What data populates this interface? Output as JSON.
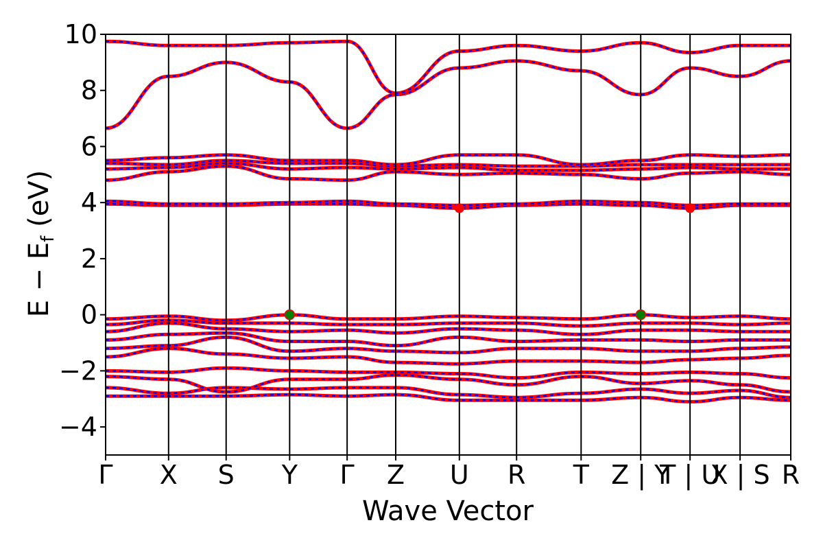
{
  "chart_data": {
    "type": "line",
    "xlabel": "Wave Vector",
    "ylabel": "E − E_f (eV)",
    "ylabel_parts": {
      "main": "E − E",
      "sub": "f",
      "unit": " (eV)"
    },
    "ylim": [
      -5,
      10
    ],
    "yticks": [
      -4,
      -2,
      0,
      2,
      4,
      6,
      8,
      10
    ],
    "ytick_labels": [
      "−4",
      "−2",
      "0",
      "2",
      "4",
      "6",
      "8",
      "10"
    ],
    "kpath_labels": [
      "Γ",
      "X",
      "S",
      "Y",
      "Γ",
      "Z",
      "U",
      "R",
      "T",
      "Z | Y",
      "T | U",
      "X | S",
      "R"
    ],
    "kpath_positions": [
      0,
      0.919,
      1.759,
      2.686,
      3.525,
      4.234,
      5.163,
      5.998,
      6.94,
      7.81,
      8.53,
      9.26,
      10.0
    ],
    "grid": false,
    "legend": "none",
    "colors": {
      "spin_up": "#ff0000",
      "spin_down": "#0000ff",
      "vbm": "#008000",
      "cbm": "#ff0000",
      "kline": "#000000"
    },
    "series": [
      {
        "color": "#ff0000",
        "points": [
          [
            0,
            -2.9
          ],
          [
            0.919,
            -2.9
          ],
          [
            1.759,
            -2.9
          ],
          [
            2.686,
            -2.85
          ],
          [
            3.525,
            -2.9
          ],
          [
            4.234,
            -2.85
          ],
          [
            5.163,
            -3.05
          ],
          [
            5.998,
            -3.05
          ],
          [
            6.94,
            -3.05
          ],
          [
            7.81,
            -2.95
          ],
          [
            8.53,
            -3.1
          ],
          [
            9.26,
            -2.95
          ],
          [
            10.0,
            -3.05
          ]
        ]
      },
      {
        "color": "#ff0000",
        "points": [
          [
            0,
            -2.6
          ],
          [
            0.919,
            -2.8
          ],
          [
            1.759,
            -2.6
          ],
          [
            2.686,
            -2.65
          ],
          [
            3.525,
            -2.6
          ],
          [
            4.234,
            -2.6
          ],
          [
            5.163,
            -2.85
          ],
          [
            5.998,
            -2.95
          ],
          [
            6.94,
            -2.8
          ],
          [
            7.81,
            -2.65
          ],
          [
            8.53,
            -2.8
          ],
          [
            9.26,
            -2.7
          ],
          [
            10.0,
            -2.95
          ]
        ]
      },
      {
        "color": "#ff0000",
        "points": [
          [
            0,
            -2.2
          ],
          [
            0.919,
            -2.3
          ],
          [
            1.759,
            -2.75
          ],
          [
            2.686,
            -2.3
          ],
          [
            3.525,
            -2.3
          ],
          [
            4.234,
            -2.15
          ],
          [
            5.163,
            -2.3
          ],
          [
            5.998,
            -2.5
          ],
          [
            6.94,
            -2.2
          ],
          [
            7.81,
            -2.45
          ],
          [
            8.53,
            -2.35
          ],
          [
            9.26,
            -2.5
          ],
          [
            10.0,
            -2.75
          ]
        ]
      },
      {
        "color": "#ff0000",
        "points": [
          [
            0,
            -2.0
          ],
          [
            0.919,
            -2.05
          ],
          [
            1.759,
            -1.9
          ],
          [
            2.686,
            -2.0
          ],
          [
            3.525,
            -2.05
          ],
          [
            4.234,
            -2.05
          ],
          [
            5.163,
            -2.1
          ],
          [
            5.998,
            -2.25
          ],
          [
            6.94,
            -2.05
          ],
          [
            7.81,
            -2.1
          ],
          [
            8.53,
            -2.05
          ],
          [
            9.26,
            -2.1
          ],
          [
            10.0,
            -2.25
          ]
        ]
      },
      {
        "color": "#ff0000",
        "points": [
          [
            0,
            -1.5
          ],
          [
            0.919,
            -1.2
          ],
          [
            1.759,
            -1.4
          ],
          [
            2.686,
            -1.55
          ],
          [
            3.525,
            -1.5
          ],
          [
            4.234,
            -1.7
          ],
          [
            5.163,
            -1.75
          ],
          [
            5.998,
            -1.65
          ],
          [
            6.94,
            -1.65
          ],
          [
            7.81,
            -1.7
          ],
          [
            8.53,
            -1.6
          ],
          [
            9.26,
            -1.55
          ],
          [
            10.0,
            -1.45
          ]
        ]
      },
      {
        "color": "#ff0000",
        "points": [
          [
            0,
            -1.2
          ],
          [
            0.919,
            -1.1
          ],
          [
            1.759,
            -0.8
          ],
          [
            2.686,
            -1.3
          ],
          [
            3.525,
            -1.2
          ],
          [
            4.234,
            -1.3
          ],
          [
            5.163,
            -1.35
          ],
          [
            5.998,
            -1.2
          ],
          [
            6.94,
            -1.2
          ],
          [
            7.81,
            -1.3
          ],
          [
            8.53,
            -1.3
          ],
          [
            9.26,
            -1.2
          ],
          [
            10.0,
            -1.15
          ]
        ]
      },
      {
        "color": "#ff0000",
        "points": [
          [
            0,
            -0.9
          ],
          [
            0.919,
            -0.7
          ],
          [
            1.759,
            -0.65
          ],
          [
            2.686,
            -0.95
          ],
          [
            3.525,
            -0.95
          ],
          [
            4.234,
            -1.1
          ],
          [
            5.163,
            -0.8
          ],
          [
            5.998,
            -0.95
          ],
          [
            6.94,
            -0.9
          ],
          [
            7.81,
            -0.9
          ],
          [
            8.53,
            -0.95
          ],
          [
            9.26,
            -0.9
          ],
          [
            10.0,
            -0.9
          ]
        ]
      },
      {
        "color": "#ff0000",
        "points": [
          [
            0,
            -0.6
          ],
          [
            0.919,
            -0.3
          ],
          [
            1.759,
            -0.5
          ],
          [
            2.686,
            -0.6
          ],
          [
            3.525,
            -0.55
          ],
          [
            4.234,
            -0.65
          ],
          [
            5.163,
            -0.5
          ],
          [
            5.998,
            -0.55
          ],
          [
            6.94,
            -0.7
          ],
          [
            7.81,
            -0.55
          ],
          [
            8.53,
            -0.55
          ],
          [
            9.26,
            -0.6
          ],
          [
            10.0,
            -0.6
          ]
        ]
      },
      {
        "color": "#ff0000",
        "points": [
          [
            0,
            -0.35
          ],
          [
            0.919,
            -0.2
          ],
          [
            1.759,
            -0.3
          ],
          [
            2.686,
            -0.3
          ],
          [
            3.525,
            -0.35
          ],
          [
            4.234,
            -0.35
          ],
          [
            5.163,
            -0.3
          ],
          [
            5.998,
            -0.3
          ],
          [
            6.94,
            -0.4
          ],
          [
            7.81,
            -0.3
          ],
          [
            8.53,
            -0.3
          ],
          [
            9.26,
            -0.35
          ],
          [
            10.0,
            -0.3
          ]
        ]
      },
      {
        "color": "#ff0000",
        "points": [
          [
            0,
            -0.15
          ],
          [
            0.919,
            -0.05
          ],
          [
            1.759,
            -0.2
          ],
          [
            2.686,
            0.0
          ],
          [
            3.525,
            -0.15
          ],
          [
            4.234,
            -0.15
          ],
          [
            5.163,
            -0.05
          ],
          [
            5.998,
            -0.1
          ],
          [
            6.94,
            -0.15
          ],
          [
            7.81,
            0.0
          ],
          [
            8.53,
            -0.1
          ],
          [
            9.26,
            -0.05
          ],
          [
            10.0,
            -0.15
          ]
        ]
      },
      {
        "color": "#ff0000",
        "points": [
          [
            0,
            3.95
          ],
          [
            0.919,
            3.9
          ],
          [
            1.759,
            3.9
          ],
          [
            2.686,
            3.95
          ],
          [
            3.525,
            3.95
          ],
          [
            4.234,
            3.9
          ],
          [
            5.163,
            3.8
          ],
          [
            5.998,
            3.9
          ],
          [
            6.94,
            3.95
          ],
          [
            7.81,
            3.9
          ],
          [
            8.53,
            3.8
          ],
          [
            9.26,
            3.9
          ],
          [
            10.0,
            3.9
          ]
        ]
      },
      {
        "color": "#ff0000",
        "points": [
          [
            0,
            4.05
          ],
          [
            0.919,
            3.95
          ],
          [
            1.759,
            3.95
          ],
          [
            2.686,
            4.0
          ],
          [
            3.525,
            4.05
          ],
          [
            4.234,
            3.95
          ],
          [
            5.163,
            3.9
          ],
          [
            5.998,
            3.95
          ],
          [
            6.94,
            4.05
          ],
          [
            7.81,
            4.0
          ],
          [
            8.53,
            3.9
          ],
          [
            9.26,
            3.95
          ],
          [
            10.0,
            3.95
          ]
        ]
      },
      {
        "color": "#ff0000",
        "points": [
          [
            0,
            4.8
          ],
          [
            0.919,
            5.1
          ],
          [
            1.759,
            5.3
          ],
          [
            2.686,
            4.85
          ],
          [
            3.525,
            4.8
          ],
          [
            4.234,
            5.1
          ],
          [
            5.163,
            5.0
          ],
          [
            5.998,
            5.05
          ],
          [
            6.94,
            5.0
          ],
          [
            7.81,
            4.85
          ],
          [
            8.53,
            5.05
          ],
          [
            9.26,
            5.1
          ],
          [
            10.0,
            5.0
          ]
        ]
      },
      {
        "color": "#ff0000",
        "points": [
          [
            0,
            5.2
          ],
          [
            0.919,
            5.25
          ],
          [
            1.759,
            5.4
          ],
          [
            2.686,
            5.2
          ],
          [
            3.525,
            5.25
          ],
          [
            4.234,
            5.2
          ],
          [
            5.163,
            5.25
          ],
          [
            5.998,
            5.15
          ],
          [
            6.94,
            5.15
          ],
          [
            7.81,
            5.2
          ],
          [
            8.53,
            5.25
          ],
          [
            9.26,
            5.2
          ],
          [
            10.0,
            5.2
          ]
        ]
      },
      {
        "color": "#ff0000",
        "points": [
          [
            0,
            5.4
          ],
          [
            0.919,
            5.35
          ],
          [
            1.759,
            5.5
          ],
          [
            2.686,
            5.4
          ],
          [
            3.525,
            5.4
          ],
          [
            4.234,
            5.3
          ],
          [
            5.163,
            5.35
          ],
          [
            5.998,
            5.3
          ],
          [
            6.94,
            5.3
          ],
          [
            7.81,
            5.35
          ],
          [
            8.53,
            5.35
          ],
          [
            9.26,
            5.35
          ],
          [
            10.0,
            5.35
          ]
        ]
      },
      {
        "color": "#ff0000",
        "points": [
          [
            0,
            5.5
          ],
          [
            0.919,
            5.6
          ],
          [
            1.759,
            5.7
          ],
          [
            2.686,
            5.5
          ],
          [
            3.525,
            5.5
          ],
          [
            4.234,
            5.35
          ],
          [
            5.163,
            5.7
          ],
          [
            5.998,
            5.7
          ],
          [
            6.94,
            5.35
          ],
          [
            7.81,
            5.5
          ],
          [
            8.53,
            5.7
          ],
          [
            9.26,
            5.65
          ],
          [
            10.0,
            5.7
          ]
        ]
      },
      {
        "color": "#ff0000",
        "points": [
          [
            0,
            6.65
          ],
          [
            0.919,
            8.5
          ],
          [
            1.759,
            9.0
          ],
          [
            2.686,
            8.3
          ],
          [
            3.525,
            6.65
          ],
          [
            4.234,
            7.85
          ],
          [
            5.163,
            8.8
          ],
          [
            5.998,
            9.05
          ],
          [
            6.94,
            8.7
          ],
          [
            7.81,
            7.85
          ],
          [
            8.53,
            8.8
          ],
          [
            9.26,
            8.5
          ],
          [
            10.0,
            9.05
          ]
        ]
      },
      {
        "color": "#ff0000",
        "points": [
          [
            0,
            9.75
          ],
          [
            0.919,
            9.6
          ],
          [
            1.759,
            9.6
          ],
          [
            2.686,
            9.7
          ],
          [
            3.525,
            9.75
          ],
          [
            4.234,
            7.9
          ],
          [
            5.163,
            9.4
          ],
          [
            5.998,
            9.6
          ],
          [
            6.94,
            9.4
          ],
          [
            7.81,
            9.7
          ],
          [
            8.53,
            9.35
          ],
          [
            9.26,
            9.6
          ],
          [
            10.0,
            9.6
          ]
        ]
      }
    ],
    "vbm_points": [
      [
        2.686,
        0.0
      ],
      [
        7.81,
        0.0
      ]
    ],
    "cbm_points": [
      [
        5.163,
        3.8
      ],
      [
        8.53,
        3.8
      ]
    ]
  }
}
